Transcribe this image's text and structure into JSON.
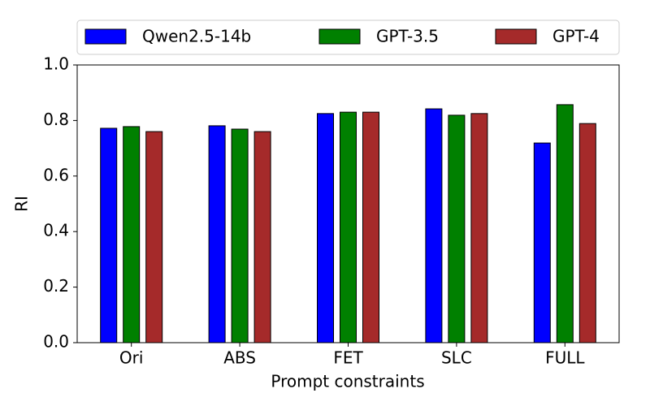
{
  "chart_data": {
    "type": "bar",
    "x_label": "Prompt constraints",
    "y_label": "RI",
    "categories": [
      "Ori",
      "ABS",
      "FET",
      "SLC",
      "FULL"
    ],
    "series": [
      {
        "name": "Qwen2.5-14b",
        "color": "#0000ff",
        "values": [
          0.772,
          0.781,
          0.825,
          0.842,
          0.719
        ]
      },
      {
        "name": "GPT-3.5",
        "color": "#008000",
        "values": [
          0.778,
          0.769,
          0.83,
          0.819,
          0.857
        ]
      },
      {
        "name": "GPT-4",
        "color": "#a52a2a",
        "values": [
          0.76,
          0.76,
          0.83,
          0.825,
          0.789
        ]
      }
    ],
    "ylim": [
      0,
      1
    ],
    "yticks": [
      {
        "value": 0,
        "label": "0.0"
      },
      0.2,
      0.4,
      0.6,
      0.8,
      {
        "value": 1,
        "label": "1.0"
      }
    ],
    "legend": "top"
  }
}
